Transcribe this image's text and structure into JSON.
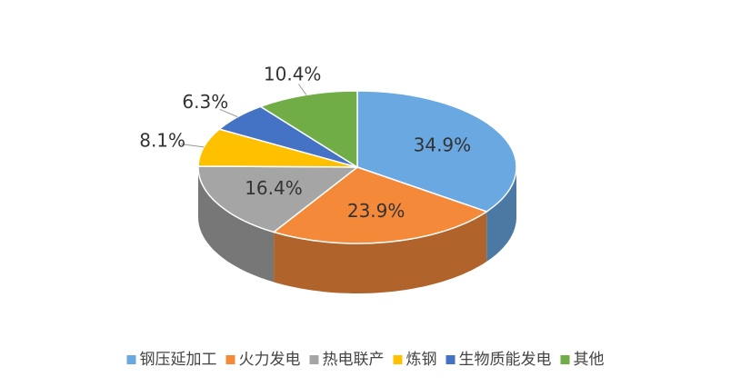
{
  "chart_data": {
    "type": "pie3d",
    "categories": [
      "钢压延加工",
      "火力发电",
      "热电联产",
      "炼钢",
      "生物质能发电",
      "其他"
    ],
    "values": [
      34.9,
      23.9,
      16.4,
      8.1,
      6.3,
      10.4
    ],
    "value_labels": [
      "34.9%",
      "23.9%",
      "16.4%",
      "8.1%",
      "6.3%",
      "10.4%"
    ],
    "colors": [
      "#6aa8e2",
      "#f5893a",
      "#a5a5a5",
      "#ffc000",
      "#4472c4",
      "#70ad47"
    ],
    "legend": "bottom"
  }
}
